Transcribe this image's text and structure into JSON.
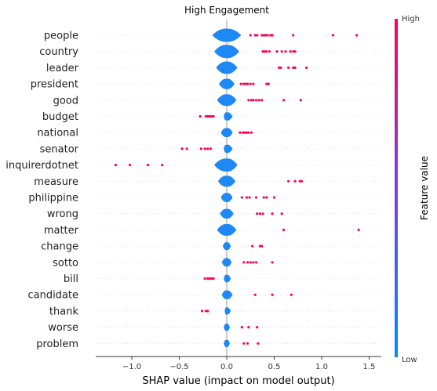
{
  "chart_data": {
    "type": "scatter",
    "title": "High Engagement",
    "xlabel": "SHAP value (impact on model output)",
    "xlim": [
      -1.35,
      1.55
    ],
    "xticks": [
      -1.0,
      -0.5,
      0.0,
      0.5,
      1.0,
      1.5
    ],
    "xtick_labels": [
      "−1.0",
      "−0.5",
      "0.0",
      "0.5",
      "1.0",
      "1.5"
    ],
    "colorbar": {
      "label": "Feature value",
      "high": "High",
      "low": "Low",
      "high_color": "#ff0052",
      "low_color": "#008bfb"
    },
    "grid": false,
    "features": [
      {
        "name": "people",
        "violin": [
          -0.15,
          0.15
        ],
        "points": [
          0.25,
          0.3,
          0.32,
          0.37,
          0.39,
          0.41,
          0.43,
          0.46,
          0.48,
          0.7,
          1.12,
          1.37
        ]
      },
      {
        "name": "country",
        "violin": [
          -0.13,
          0.13
        ],
        "points": [
          0.38,
          0.4,
          0.42,
          0.45,
          0.53,
          0.58,
          0.62,
          0.67,
          0.7,
          0.72
        ]
      },
      {
        "name": "leader",
        "violin": [
          -0.11,
          0.11
        ],
        "points": [
          0.55,
          0.57,
          0.65,
          0.7,
          0.72,
          0.84
        ]
      },
      {
        "name": "president",
        "violin": [
          -0.08,
          0.08
        ],
        "points": [
          0.15,
          0.18,
          0.2,
          0.22,
          0.25,
          0.28,
          0.42,
          0.44
        ]
      },
      {
        "name": "good",
        "violin": [
          -0.1,
          0.1
        ],
        "points": [
          0.23,
          0.26,
          0.28,
          0.31,
          0.34,
          0.37,
          0.6,
          0.78
        ]
      },
      {
        "name": "budget",
        "violin": [
          -0.03,
          0.06
        ],
        "points": [
          -0.28,
          -0.22,
          -0.2,
          -0.18,
          -0.16,
          -0.14
        ]
      },
      {
        "name": "national",
        "violin": [
          -0.06,
          0.06
        ],
        "points": [
          0.14,
          0.17,
          0.19,
          0.21,
          0.23,
          0.26
        ]
      },
      {
        "name": "senator",
        "violin": [
          -0.03,
          0.06
        ],
        "points": [
          -0.47,
          -0.42,
          -0.27,
          -0.23,
          -0.2,
          -0.17
        ]
      },
      {
        "name": "inquirerdotnet",
        "violin": [
          -0.13,
          0.11
        ],
        "points": [
          -1.17,
          -1.02,
          -0.83,
          -0.68
        ]
      },
      {
        "name": "measure",
        "violin": [
          -0.09,
          0.09
        ],
        "points": [
          0.65,
          0.72,
          0.77,
          0.79
        ]
      },
      {
        "name": "philippine",
        "violin": [
          -0.06,
          0.06
        ],
        "points": [
          0.16,
          0.21,
          0.24,
          0.31,
          0.39,
          0.42,
          0.5
        ]
      },
      {
        "name": "wrong",
        "violin": [
          -0.07,
          0.07
        ],
        "points": [
          0.32,
          0.35,
          0.38,
          0.48,
          0.58
        ]
      },
      {
        "name": "matter",
        "violin": [
          -0.1,
          0.1
        ],
        "points": [
          0.6,
          1.39
        ]
      },
      {
        "name": "change",
        "violin": [
          -0.04,
          0.04
        ],
        "points": [
          0.27,
          0.35,
          0.37
        ]
      },
      {
        "name": "sotto",
        "violin": [
          -0.05,
          0.05
        ],
        "points": [
          0.18,
          0.22,
          0.25,
          0.28,
          0.31,
          0.48
        ]
      },
      {
        "name": "bill",
        "violin": [
          -0.03,
          0.04
        ],
        "points": [
          -0.23,
          -0.2,
          -0.18,
          -0.16,
          -0.14
        ]
      },
      {
        "name": "candidate",
        "violin": [
          -0.05,
          0.06
        ],
        "points": [
          0.3,
          0.48,
          0.68
        ]
      },
      {
        "name": "thank",
        "violin": [
          -0.02,
          0.04
        ],
        "points": [
          -0.26,
          -0.22,
          -0.2
        ]
      },
      {
        "name": "worse",
        "violin": [
          -0.03,
          0.03
        ],
        "points": [
          0.16,
          0.23,
          0.32
        ]
      },
      {
        "name": "problem",
        "violin": [
          -0.03,
          0.03
        ],
        "points": [
          0.18,
          0.22,
          0.33
        ]
      }
    ]
  }
}
